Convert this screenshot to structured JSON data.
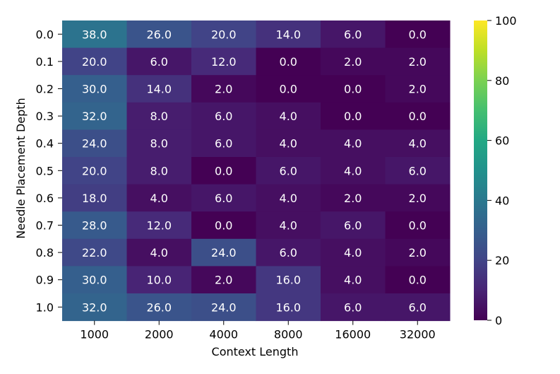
{
  "chart_data": {
    "type": "heatmap",
    "xlabel": "Context Length",
    "ylabel": "Needle Placement Depth",
    "x_categories": [
      "1000",
      "2000",
      "4000",
      "8000",
      "16000",
      "32000"
    ],
    "y_categories": [
      "0.0",
      "0.1",
      "0.2",
      "0.3",
      "0.4",
      "0.5",
      "0.6",
      "0.7",
      "0.8",
      "0.9",
      "1.0"
    ],
    "values": [
      [
        38.0,
        26.0,
        20.0,
        14.0,
        6.0,
        0.0
      ],
      [
        20.0,
        6.0,
        12.0,
        0.0,
        2.0,
        2.0
      ],
      [
        30.0,
        14.0,
        2.0,
        0.0,
        0.0,
        2.0
      ],
      [
        32.0,
        8.0,
        6.0,
        4.0,
        0.0,
        0.0
      ],
      [
        24.0,
        8.0,
        6.0,
        4.0,
        4.0,
        4.0
      ],
      [
        20.0,
        8.0,
        0.0,
        6.0,
        4.0,
        6.0
      ],
      [
        18.0,
        4.0,
        6.0,
        4.0,
        2.0,
        2.0
      ],
      [
        28.0,
        12.0,
        0.0,
        4.0,
        6.0,
        0.0
      ],
      [
        22.0,
        4.0,
        24.0,
        6.0,
        4.0,
        2.0
      ],
      [
        30.0,
        10.0,
        2.0,
        16.0,
        4.0,
        0.0
      ],
      [
        32.0,
        26.0,
        24.0,
        16.0,
        6.0,
        6.0
      ]
    ],
    "value_format": "one decimal",
    "colorscale": "viridis",
    "vmin": 0,
    "vmax": 100,
    "colorbar_ticks": [
      "0",
      "20",
      "40",
      "60",
      "80",
      "100"
    ],
    "grid": false,
    "colorbar_position": "right"
  }
}
